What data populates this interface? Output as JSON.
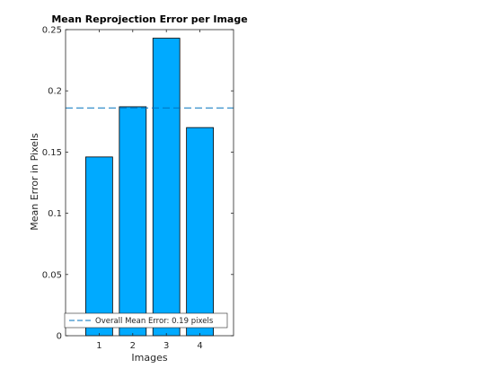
{
  "chart_data": {
    "type": "bar",
    "title": "Mean Reprojection Error per Image",
    "xlabel": "Images",
    "ylabel": "Mean Error in Pixels",
    "categories": [
      "1",
      "2",
      "3",
      "4"
    ],
    "values": [
      0.146,
      0.187,
      0.243,
      0.17
    ],
    "ylim": [
      0,
      0.25
    ],
    "xlim": [
      0,
      5
    ],
    "yticks": [
      0,
      0.05,
      0.1,
      0.15,
      0.2,
      0.25
    ],
    "ytick_labels": [
      "0",
      "0.05",
      "0.1",
      "0.15",
      "0.2",
      "0.25"
    ],
    "bar_color": "#00aaff",
    "reference_line": {
      "value": 0.186,
      "style": "dashed",
      "color": "#0072bd",
      "label": "Overall Mean Error: 0.19 pixels"
    },
    "legend": {
      "placement": "bottom-left",
      "entries": [
        "Overall Mean Error: 0.19 pixels"
      ]
    },
    "grid": false
  }
}
